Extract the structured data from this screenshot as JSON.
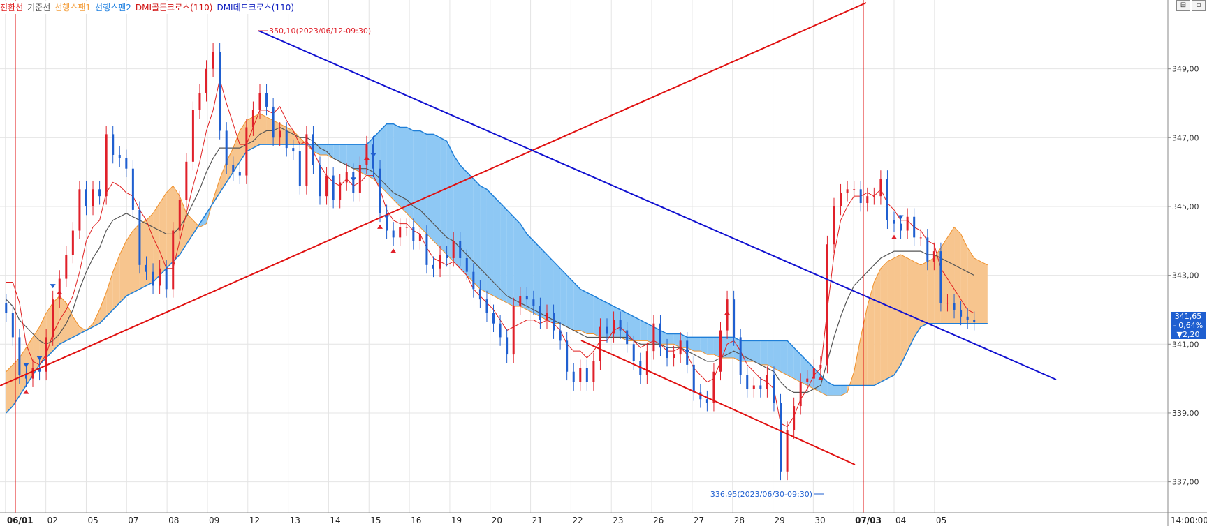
{
  "legend": [
    {
      "label": "전환선",
      "color": "#e02020"
    },
    {
      "label": "기준선",
      "color": "#555555"
    },
    {
      "label": "선행스팬1",
      "color": "#f4a040"
    },
    {
      "label": "선행스팬2",
      "color": "#2080e0"
    },
    {
      "label": "DMI골든크로스(110)",
      "color": "#d01010"
    },
    {
      "label": "DMI데드크로스(110)",
      "color": "#1020c0"
    }
  ],
  "controls": [
    "⊟",
    "▫"
  ],
  "annotations": {
    "high_label": "350,10(2023/06/12-09:30)",
    "low_label": "336,95(2023/06/30-09:30)"
  },
  "price_box": {
    "price": "341,65",
    "change_pct": "- 0,64%",
    "change": "▼2,20"
  },
  "colors": {
    "up": "#e0202a",
    "down": "#1f5fd0",
    "span1": "#f7c58e",
    "span2": "#8ec8f4",
    "tenkan": "#e02020",
    "kijun": "#555555",
    "trend_red": "#e01010",
    "trend_blue": "#1010d0"
  },
  "chart_data": {
    "type": "candlestick",
    "x_tick_labels": [
      "06/01",
      "02",
      "05",
      "07",
      "08",
      "09",
      "12",
      "13",
      "14",
      "15",
      "16",
      "19",
      "20",
      "21",
      "22",
      "23",
      "26",
      "27",
      "28",
      "29",
      "30",
      "07/03",
      "04",
      "05"
    ],
    "time_label": "14:00:00",
    "y_tick_labels": [
      "349,00",
      "347,00",
      "345,00",
      "343,00",
      "341,00",
      "339,00",
      "337,00"
    ],
    "y_ticks": [
      349,
      347,
      345,
      343,
      341,
      339,
      337
    ],
    "ylim": [
      336.1,
      351.0
    ],
    "grid": true,
    "high": 350.1,
    "low": 336.95,
    "last_price": 341.65,
    "closes": [
      341.9,
      341.2,
      340.1,
      340.0,
      340.3,
      340.2,
      341.2,
      342.3,
      342.9,
      343.6,
      344.3,
      345.5,
      345.0,
      345.5,
      345.3,
      347.1,
      346.5,
      346.4,
      346.1,
      344.9,
      343.3,
      343.1,
      342.7,
      343.2,
      342.6,
      344.3,
      345.2,
      346.3,
      347.8,
      348.3,
      349.0,
      349.5,
      347.2,
      346.2,
      346.0,
      345.9,
      347.3,
      347.8,
      348.3,
      347.9,
      347.0,
      347.2,
      346.7,
      346.6,
      345.6,
      347.1,
      346.2,
      345.3,
      345.9,
      345.2,
      345.7,
      346.0,
      345.4,
      346.2,
      346.8,
      346.1,
      344.8,
      344.3,
      344.1,
      344.4,
      344.4,
      344.0,
      344.2,
      343.3,
      343.2,
      343.6,
      343.5,
      344.0,
      343.5,
      343.1,
      342.6,
      342.3,
      341.9,
      341.6,
      341.2,
      340.7,
      342.1,
      342.4,
      342.3,
      342.1,
      341.7,
      341.9,
      341.4,
      341.1,
      340.2,
      339.9,
      340.3,
      339.9,
      340.5,
      341.5,
      341.3,
      341.7,
      341.4,
      341.0,
      340.5,
      340.1,
      340.8,
      341.6,
      340.9,
      340.6,
      340.7,
      341.1,
      340.4,
      339.6,
      339.4,
      339.3,
      340.2,
      341.4,
      342.3,
      341.2,
      340.1,
      339.7,
      339.8,
      339.7,
      340.1,
      339.3,
      337.3,
      338.5,
      339.2,
      339.9,
      340.0,
      340.3,
      340.4,
      343.9,
      345.0,
      345.4,
      345.5,
      345.5,
      345.1,
      345.3,
      345.3,
      345.8,
      344.6,
      344.5,
      344.3,
      344.7,
      344.1,
      344.1,
      343.4,
      343.7,
      342.2,
      342.2,
      342.0,
      341.8,
      341.7,
      341.65
    ],
    "tenkan": [
      342.8,
      342.8,
      342.2,
      341.0,
      340.5,
      340.4,
      340.7,
      341.3,
      341.7,
      342.0,
      342.4,
      343.1,
      344.0,
      344.4,
      344.6,
      345.4,
      345.7,
      345.6,
      345.4,
      345.3,
      344.9,
      344.6,
      344.1,
      343.7,
      343.2,
      343.2,
      344.0,
      344.8,
      345.6,
      346.3,
      347.2,
      347.8,
      348.7,
      348.0,
      347.4,
      346.8,
      346.8,
      347.3,
      347.8,
      347.8,
      347.7,
      347.9,
      347.5,
      347.2,
      346.8,
      346.9,
      346.6,
      346.2,
      345.9,
      345.7,
      345.6,
      345.8,
      345.6,
      345.7,
      345.9,
      345.9,
      345.5,
      344.9,
      344.6,
      344.5,
      344.5,
      344.3,
      344.2,
      343.8,
      343.5,
      343.4,
      343.3,
      343.4,
      343.2,
      343.0,
      342.6,
      342.4,
      342.2,
      342.0,
      341.7,
      341.4,
      341.5,
      341.6,
      341.7,
      341.7,
      341.6,
      341.7,
      341.6,
      341.4,
      341.0,
      340.8,
      340.8,
      340.6,
      340.8,
      341.1,
      341.1,
      341.4,
      341.5,
      341.3,
      341.1,
      340.9,
      341.0,
      341.1,
      341.0,
      340.8,
      340.8,
      340.9,
      340.7,
      340.3,
      340.1,
      339.9,
      340.0,
      340.5,
      341.0,
      341.1,
      340.8,
      340.4,
      340.2,
      340.0,
      339.9,
      339.7,
      338.7,
      338.6,
      338.9,
      339.4,
      339.7,
      340.1,
      340.3,
      342.0,
      343.6,
      344.6,
      345.0,
      345.3,
      345.3,
      345.4,
      345.3,
      345.5,
      345.1,
      344.9,
      344.6,
      344.6,
      344.4,
      344.3,
      344.0,
      343.9,
      343.2,
      342.9,
      342.6,
      342.3,
      342.0,
      341.9
    ],
    "kijun": [
      342.3,
      342.1,
      341.7,
      341.5,
      341.3,
      341.1,
      341.0,
      341.1,
      341.3,
      341.6,
      342.0,
      342.6,
      343.1,
      343.5,
      343.8,
      344.3,
      344.6,
      344.7,
      344.8,
      344.7,
      344.6,
      344.5,
      344.4,
      344.3,
      344.2,
      344.2,
      344.4,
      344.7,
      345.1,
      345.5,
      346.0,
      346.4,
      346.7,
      346.7,
      346.7,
      346.7,
      346.8,
      346.9,
      347.1,
      347.2,
      347.2,
      347.3,
      347.2,
      347.1,
      347.0,
      347.0,
      346.9,
      346.7,
      346.6,
      346.4,
      346.3,
      346.2,
      346.1,
      346.1,
      346.1,
      346.0,
      345.8,
      345.6,
      345.4,
      345.3,
      345.2,
      345.0,
      344.9,
      344.7,
      344.5,
      344.3,
      344.1,
      344.0,
      343.8,
      343.6,
      343.4,
      343.2,
      343.0,
      342.8,
      342.6,
      342.4,
      342.3,
      342.2,
      342.1,
      342.0,
      341.9,
      341.8,
      341.7,
      341.6,
      341.5,
      341.4,
      341.3,
      341.2,
      341.2,
      341.2,
      341.2,
      341.2,
      341.2,
      341.2,
      341.1,
      341.0,
      341.0,
      341.0,
      341.0,
      340.9,
      340.9,
      340.9,
      340.8,
      340.7,
      340.6,
      340.5,
      340.5,
      340.6,
      340.7,
      340.8,
      340.7,
      340.6,
      340.5,
      340.4,
      340.3,
      340.2,
      339.9,
      339.7,
      339.6,
      339.6,
      339.6,
      339.7,
      339.8,
      340.5,
      341.2,
      341.8,
      342.3,
      342.7,
      342.9,
      343.1,
      343.3,
      343.5,
      343.6,
      343.7,
      343.7,
      343.7,
      343.7,
      343.7,
      343.6,
      343.6,
      343.5,
      343.4,
      343.3,
      343.2,
      343.1,
      343.0
    ],
    "span1": [
      340.2,
      340.4,
      340.6,
      340.9,
      341.2,
      341.5,
      341.9,
      342.2,
      342.4,
      342.2,
      341.8,
      341.5,
      341.4,
      341.6,
      342.0,
      342.5,
      343.1,
      343.6,
      344.0,
      344.3,
      344.5,
      344.6,
      344.8,
      345.1,
      345.4,
      345.6,
      345.3,
      344.8,
      344.6,
      344.4,
      344.5,
      345.2,
      345.8,
      346.3,
      346.7,
      347.2,
      347.5,
      347.6,
      347.7,
      347.6,
      347.5,
      347.4,
      347.3,
      347.2,
      347.0,
      346.8,
      346.6,
      346.5,
      346.5,
      346.4,
      346.3,
      346.2,
      346.1,
      346.0,
      345.9,
      345.8,
      345.6,
      345.4,
      345.2,
      345.0,
      344.8,
      344.6,
      344.4,
      344.2,
      344.0,
      343.8,
      343.6,
      343.4,
      343.2,
      343.0,
      342.8,
      342.6,
      342.5,
      342.4,
      342.3,
      342.2,
      342.1,
      342.1,
      342.0,
      341.9,
      341.8,
      341.7,
      341.6,
      341.6,
      341.5,
      341.4,
      341.4,
      341.3,
      341.3,
      341.2,
      341.2,
      341.2,
      341.2,
      341.1,
      341.1,
      341.1,
      341.1,
      341.0,
      341.0,
      341.0,
      341.0,
      340.9,
      340.9,
      340.8,
      340.8,
      340.7,
      340.7,
      340.6,
      340.6,
      340.6,
      340.5,
      340.5,
      340.5,
      340.4,
      340.4,
      340.3,
      340.2,
      340.1,
      340.0,
      339.9,
      339.8,
      339.7,
      339.6,
      339.5,
      339.5,
      339.5,
      339.6,
      340.2,
      341.2,
      342.1,
      342.8,
      343.2,
      343.4,
      343.5,
      343.6,
      343.5,
      343.4,
      343.3,
      343.4,
      343.5,
      343.8,
      344.1,
      344.4,
      344.2,
      343.8,
      343.5,
      343.4,
      343.3
    ],
    "span2": [
      339.0,
      339.2,
      339.5,
      339.8,
      340.1,
      340.4,
      340.6,
      340.8,
      341.0,
      341.1,
      341.2,
      341.3,
      341.4,
      341.5,
      341.6,
      341.8,
      342.0,
      342.2,
      342.4,
      342.5,
      342.6,
      342.7,
      342.8,
      343.0,
      343.2,
      343.4,
      343.6,
      343.9,
      344.2,
      344.5,
      344.8,
      345.1,
      345.4,
      345.7,
      346.0,
      346.3,
      346.6,
      346.7,
      346.8,
      346.8,
      346.8,
      346.8,
      346.8,
      346.8,
      346.8,
      346.8,
      346.8,
      346.8,
      346.8,
      346.8,
      346.8,
      346.8,
      346.8,
      346.8,
      346.8,
      347.0,
      347.2,
      347.4,
      347.4,
      347.3,
      347.3,
      347.2,
      347.2,
      347.1,
      347.1,
      347.0,
      346.9,
      346.5,
      346.2,
      346.0,
      345.8,
      345.6,
      345.5,
      345.3,
      345.1,
      344.9,
      344.7,
      344.5,
      344.2,
      344.0,
      343.8,
      343.6,
      343.4,
      343.2,
      343.0,
      342.8,
      342.6,
      342.5,
      342.4,
      342.3,
      342.2,
      342.1,
      342.0,
      341.9,
      341.8,
      341.7,
      341.6,
      341.5,
      341.4,
      341.3,
      341.3,
      341.3,
      341.2,
      341.2,
      341.2,
      341.2,
      341.2,
      341.2,
      341.2,
      341.2,
      341.1,
      341.1,
      341.1,
      341.1,
      341.1,
      341.1,
      341.1,
      341.1,
      340.9,
      340.7,
      340.5,
      340.3,
      340.1,
      339.9,
      339.8,
      339.8,
      339.8,
      339.8,
      339.8,
      339.8,
      339.8,
      339.9,
      340.0,
      340.1,
      340.4,
      340.8,
      341.2,
      341.5,
      341.6,
      341.6,
      341.6,
      341.6,
      341.6,
      341.6,
      341.6,
      341.6,
      341.6,
      341.6
    ],
    "golden_cross_idx": [
      3,
      8,
      54,
      56,
      58,
      108,
      122,
      133
    ],
    "dead_cross_idx": [
      3,
      5,
      7,
      52,
      55,
      57,
      102,
      134
    ]
  }
}
